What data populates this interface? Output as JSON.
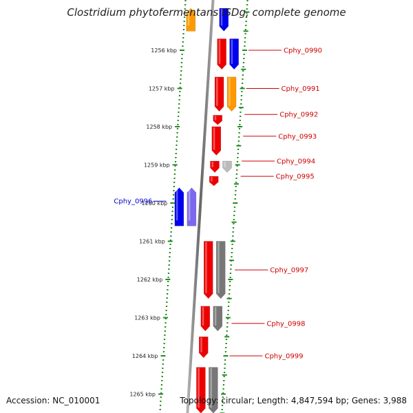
{
  "title": "Clostridium phytofermentans ISDg, complete genome",
  "footer": {
    "accession": "Accession: NC_010001",
    "topology": "Topology: circular; Length: 4,847,594 bp; Genes: 3,988"
  },
  "colors": {
    "tick": "#228b22",
    "label_red": "#cc0000",
    "label_blue": "#0000cc",
    "backbone": "#888888",
    "red_feature": "#ee0000",
    "blue_feature": "#0000ee",
    "orange_feature": "#ff9900",
    "grey_feature": "#777777",
    "lightgrey_feature": "#bbbbbb",
    "purple_feature": "#7b68ee"
  },
  "chart_data": {
    "type": "genome-map",
    "range_kbp": [
      1255,
      1265.5
    ],
    "ticks": [
      {
        "kbp": 1256,
        "label": "1256 kbp"
      },
      {
        "kbp": 1257,
        "label": "1257 kbp"
      },
      {
        "kbp": 1258,
        "label": "1258 kbp"
      },
      {
        "kbp": 1259,
        "label": "1259 kbp"
      },
      {
        "kbp": 1260,
        "label": "1260 kbp"
      },
      {
        "kbp": 1261,
        "label": "1261 kbp"
      },
      {
        "kbp": 1262,
        "label": "1262 kbp"
      },
      {
        "kbp": 1263,
        "label": "1263 kbp"
      },
      {
        "kbp": 1264,
        "label": "1264 kbp"
      },
      {
        "kbp": 1265,
        "label": "1265 kbp"
      }
    ],
    "features": [
      {
        "start": 1254.9,
        "end": 1255.5,
        "strand": 1,
        "lane": "inner",
        "color": "blue"
      },
      {
        "start": 1254.9,
        "end": 1255.5,
        "strand": -1,
        "lane": "inner",
        "color": "orange"
      },
      {
        "start": 1255.7,
        "end": 1256.5,
        "strand": 1,
        "lane": "inner",
        "color": "red"
      },
      {
        "start": 1255.7,
        "end": 1256.5,
        "strand": 1,
        "lane": "outer",
        "color": "blue"
      },
      {
        "start": 1256.7,
        "end": 1257.6,
        "strand": 1,
        "lane": "inner",
        "color": "red"
      },
      {
        "start": 1256.7,
        "end": 1257.6,
        "strand": 1,
        "lane": "outer",
        "color": "orange"
      },
      {
        "start": 1257.7,
        "end": 1257.95,
        "strand": 1,
        "lane": "inner",
        "color": "red"
      },
      {
        "start": 1258.0,
        "end": 1258.75,
        "strand": 1,
        "lane": "inner",
        "color": "red"
      },
      {
        "start": 1258.9,
        "end": 1259.2,
        "strand": 1,
        "lane": "inner",
        "color": "red"
      },
      {
        "start": 1258.9,
        "end": 1259.2,
        "strand": 1,
        "lane": "outer",
        "color": "lightgrey"
      },
      {
        "start": 1259.3,
        "end": 1259.55,
        "strand": 1,
        "lane": "inner",
        "color": "red"
      },
      {
        "start": 1259.6,
        "end": 1260.6,
        "strand": -1,
        "lane": "inner",
        "color": "blue"
      },
      {
        "start": 1259.6,
        "end": 1260.6,
        "strand": -1,
        "lane": "outer",
        "color": "purple"
      },
      {
        "start": 1261.0,
        "end": 1262.5,
        "strand": 1,
        "lane": "inner",
        "color": "red"
      },
      {
        "start": 1261.0,
        "end": 1262.5,
        "strand": 1,
        "lane": "outer",
        "color": "grey"
      },
      {
        "start": 1262.7,
        "end": 1263.35,
        "strand": 1,
        "lane": "inner",
        "color": "red"
      },
      {
        "start": 1262.7,
        "end": 1263.35,
        "strand": 1,
        "lane": "outer",
        "color": "grey"
      },
      {
        "start": 1263.5,
        "end": 1264.05,
        "strand": 1,
        "lane": "inner",
        "color": "red"
      },
      {
        "start": 1264.3,
        "end": 1265.5,
        "strand": 1,
        "lane": "inner",
        "color": "red"
      },
      {
        "start": 1264.3,
        "end": 1265.5,
        "strand": 1,
        "lane": "outer",
        "color": "grey"
      }
    ],
    "gene_labels": [
      {
        "text": "Cphy_0990",
        "kbp": 1256.0,
        "side": "right",
        "color": "red"
      },
      {
        "text": "Cphy_0991",
        "kbp": 1257.0,
        "side": "right",
        "color": "red"
      },
      {
        "text": "Cphy_0992",
        "kbp": 1257.68,
        "side": "right",
        "color": "red"
      },
      {
        "text": "Cphy_0993",
        "kbp": 1258.25,
        "side": "right",
        "color": "red"
      },
      {
        "text": "Cphy_0994",
        "kbp": 1258.9,
        "side": "right",
        "color": "red"
      },
      {
        "text": "Cphy_0995",
        "kbp": 1259.3,
        "side": "right",
        "color": "red"
      },
      {
        "text": "Cphy_0996",
        "kbp": 1259.95,
        "side": "left",
        "color": "blue"
      },
      {
        "text": "Cphy_0997",
        "kbp": 1261.75,
        "side": "right",
        "color": "red"
      },
      {
        "text": "Cphy_0998",
        "kbp": 1263.15,
        "side": "right",
        "color": "red"
      },
      {
        "text": "Cphy_0999",
        "kbp": 1264.0,
        "side": "right",
        "color": "red"
      }
    ]
  }
}
